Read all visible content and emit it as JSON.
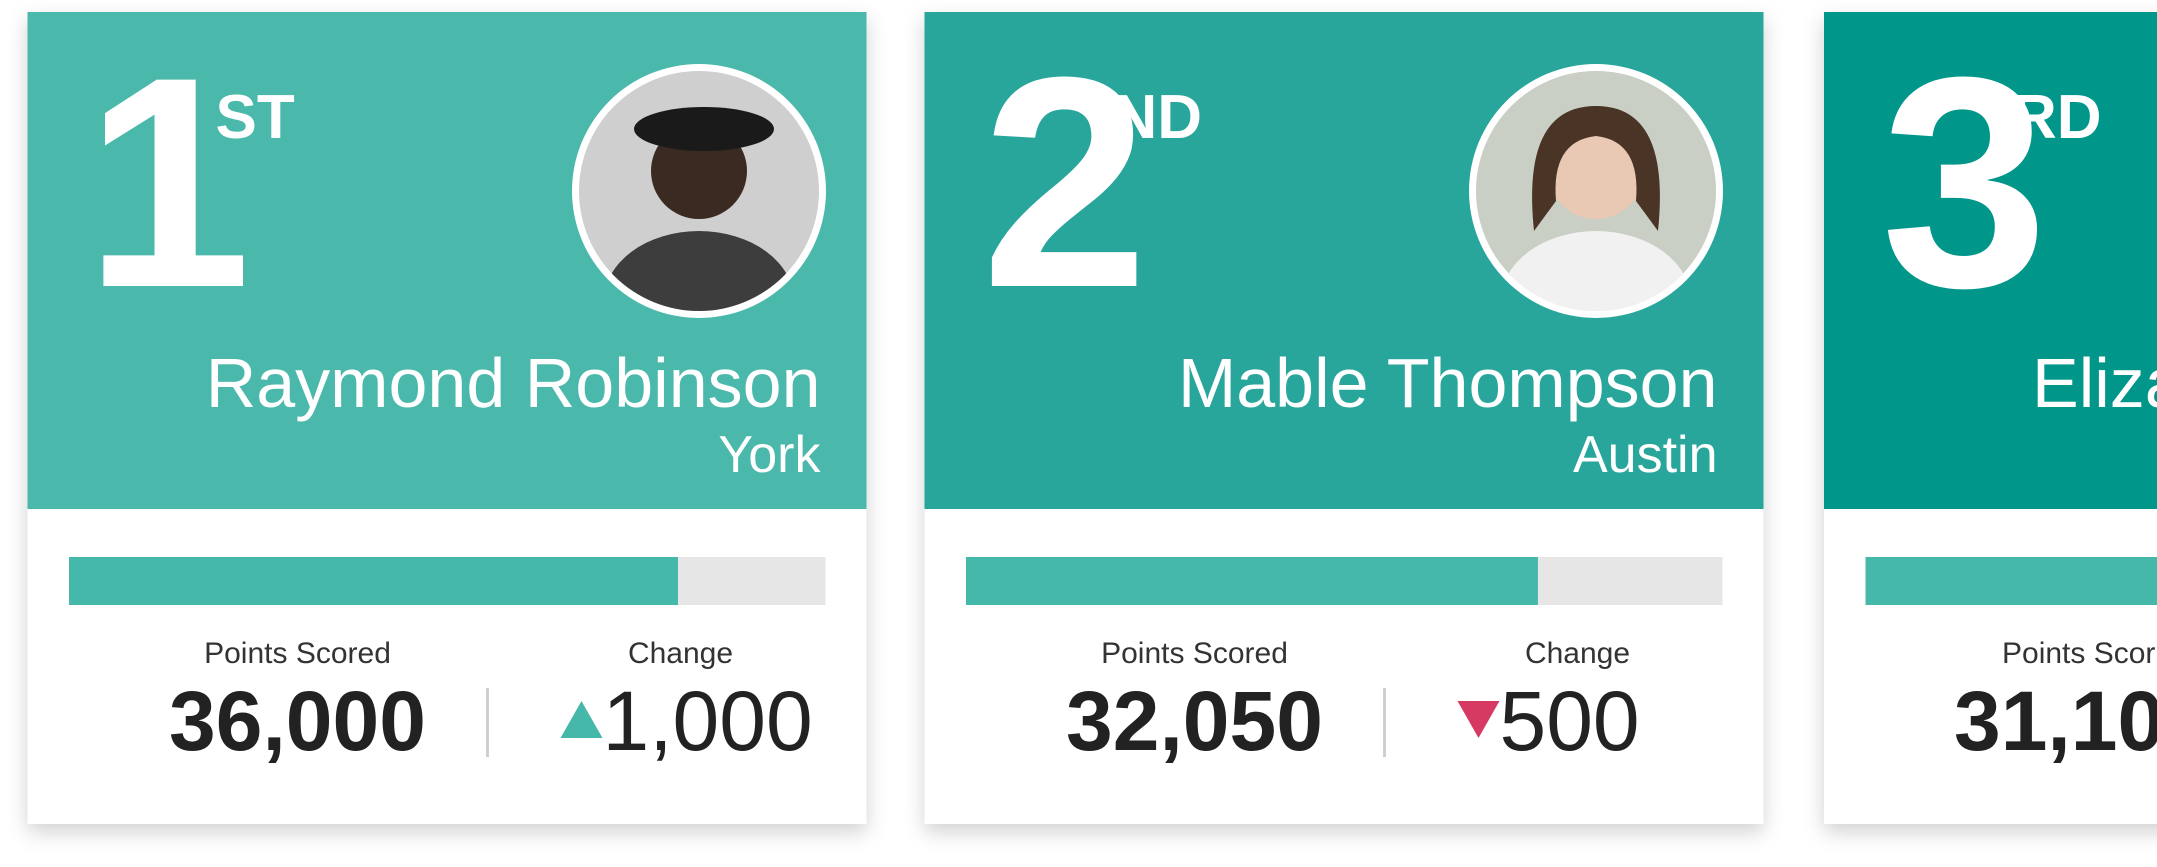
{
  "cards": [
    {
      "rank": "1",
      "suffix": "ST",
      "name": "Raymond Robinson",
      "city": "York",
      "progress": 80.5,
      "points_label": "Points Scored",
      "points": "36,000",
      "change_label": "Change",
      "direction": "up",
      "change": "1,000"
    },
    {
      "rank": "2",
      "suffix": "ND",
      "name": "Mable Thompson",
      "city": "Austin",
      "progress": 75.6,
      "points_label": "Points Scored",
      "points": "32,050",
      "change_label": "Change",
      "direction": "down",
      "change": "500"
    },
    {
      "rank": "3",
      "suffix": "RD",
      "name": "Eliza",
      "points_label": "Points Scor",
      "points": "31,10"
    }
  ]
}
